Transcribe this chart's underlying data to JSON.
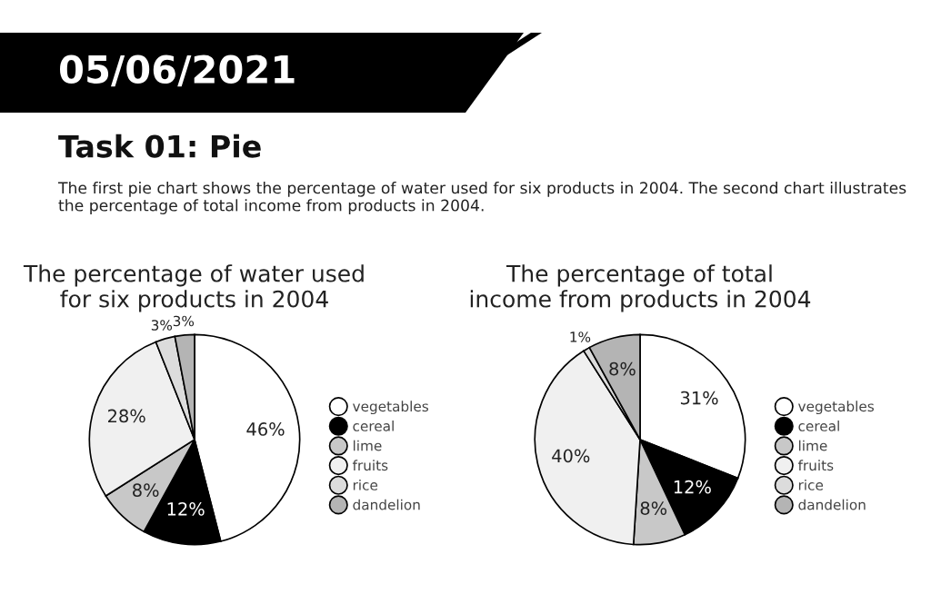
{
  "chart_data": [
    {
      "type": "other",
      "annotations": [
        "05/06/2021",
        "Task 01: Pie",
        "The first pie chart shows the percentage of water used for six products in 2004. The second chart illustrates the percentage of total income from products in 2004."
      ]
    },
    {
      "type": "pie",
      "title": "The percentage of water used\nfor six products in 2004",
      "categories": [
        "vegetables",
        "cereal",
        "lime",
        "fruits",
        "rice",
        "dandelion"
      ],
      "values": [
        46,
        12,
        8,
        28,
        3,
        3
      ],
      "value_labels": [
        "46%",
        "12%",
        "8%",
        "28%",
        "3%",
        "3%"
      ],
      "colors": [
        "#ffffff",
        "#000000",
        "#c8c8c8",
        "#f0f0f0",
        "#dcdcdc",
        "#b4b4b4"
      ],
      "legend": "right"
    },
    {
      "type": "pie",
      "title": "The percentage of total\nincome from products in 2004",
      "categories": [
        "vegetables",
        "cereal",
        "lime",
        "fruits",
        "rice",
        "dandelion"
      ],
      "values": [
        31,
        12,
        8,
        40,
        1,
        8
      ],
      "value_labels": [
        "31%",
        "12%",
        "8%",
        "40%",
        "1%",
        "8%"
      ],
      "colors": [
        "#ffffff",
        "#000000",
        "#c8c8c8",
        "#f0f0f0",
        "#dcdcdc",
        "#b4b4b4"
      ],
      "legend": "right"
    }
  ]
}
